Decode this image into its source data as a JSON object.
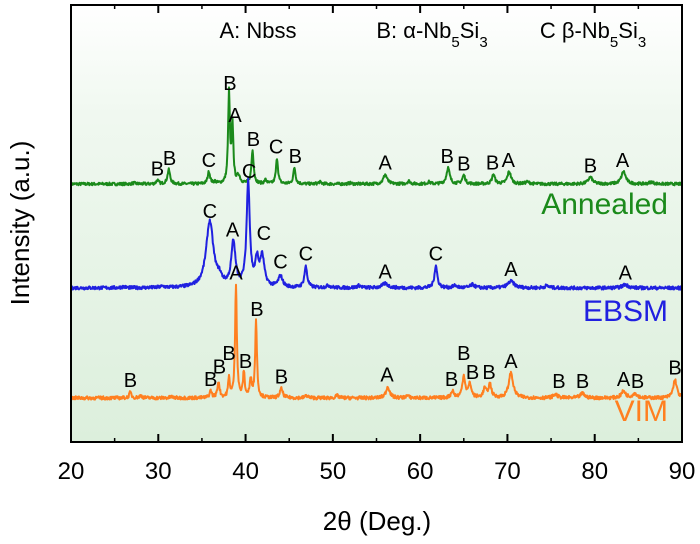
{
  "chart_data": {
    "type": "line",
    "title": "",
    "xlabel": "2θ (Deg.)",
    "ylabel": "Intensity (a.u.)",
    "xlim": [
      20,
      90
    ],
    "x_ticks": [
      "20",
      "30",
      "40",
      "50",
      "60",
      "70",
      "80",
      "90"
    ],
    "y_ticks_labeled": false,
    "grid": false,
    "legend_position": "top-right",
    "legend": [
      {
        "key": "A",
        "text": "A: Nbss"
      },
      {
        "key": "B",
        "text": "B: α-Nb5Si3",
        "html": "B: α-Nb<tspan baseline-shift='sub' font-size='15'>5</tspan>Si<tspan baseline-shift='sub' font-size='15'>3</tspan>"
      },
      {
        "key": "C",
        "text": "C β-Nb5Si3",
        "html": "C β-Nb<tspan baseline-shift='sub' font-size='15'>5</tspan>Si<tspan baseline-shift='sub' font-size='15'>3</tspan>"
      }
    ],
    "series": [
      {
        "name": "Annealed",
        "color": "#1b8a1b",
        "baseline": 0.23,
        "peaks": [
          [
            27.2,
            0.01,
            0.2
          ],
          [
            29.9,
            0.04,
            0.15
          ],
          [
            31.2,
            0.15,
            0.18
          ],
          [
            35.8,
            0.13,
            0.16
          ],
          [
            36.5,
            0.02,
            0.15
          ],
          [
            38.1,
            0.95,
            0.12
          ],
          [
            38.5,
            0.6,
            0.12
          ],
          [
            39.2,
            0.08,
            0.2
          ],
          [
            40.8,
            0.35,
            0.15
          ],
          [
            42.3,
            0.04,
            0.15
          ],
          [
            43.6,
            0.27,
            0.14
          ],
          [
            45.6,
            0.17,
            0.15
          ],
          [
            48.5,
            0.02,
            0.2
          ],
          [
            52.0,
            0.01,
            0.2
          ],
          [
            56.0,
            0.1,
            0.25
          ],
          [
            58.7,
            0.03,
            0.2
          ],
          [
            61.0,
            0.02,
            0.2
          ],
          [
            63.2,
            0.17,
            0.22
          ],
          [
            65.0,
            0.09,
            0.2
          ],
          [
            68.4,
            0.1,
            0.2
          ],
          [
            70.2,
            0.13,
            0.25
          ],
          [
            72.3,
            0.02,
            0.3
          ],
          [
            79.5,
            0.07,
            0.3
          ],
          [
            83.3,
            0.13,
            0.3
          ],
          [
            86.5,
            0.02,
            0.3
          ]
        ],
        "annotations": [
          [
            "B",
            29.9,
            0.07
          ],
          [
            "B",
            31.3,
            0.18
          ],
          [
            "C",
            35.8,
            0.16
          ],
          [
            "B",
            38.2,
            0.97
          ],
          [
            "A",
            38.8,
            0.63
          ],
          [
            "B",
            40.9,
            0.38
          ],
          [
            "C",
            43.5,
            0.3
          ],
          [
            "B",
            45.7,
            0.2
          ],
          [
            "A",
            56.0,
            0.13
          ],
          [
            "B",
            63.1,
            0.2
          ],
          [
            "B",
            65.0,
            0.12
          ],
          [
            "B",
            68.3,
            0.13
          ],
          [
            "A",
            70.1,
            0.16
          ],
          [
            "B",
            79.5,
            0.1
          ],
          [
            "A",
            83.2,
            0.16
          ]
        ]
      },
      {
        "name": "EBSM",
        "color": "#2020e0",
        "baseline": 0.22,
        "peaks": [
          [
            26.0,
            0.01,
            0.3
          ],
          [
            30.5,
            0.01,
            0.3
          ],
          [
            35.9,
            0.6,
            0.5
          ],
          [
            37.0,
            0.06,
            0.3
          ],
          [
            38.6,
            0.4,
            0.28
          ],
          [
            40.3,
            0.95,
            0.22
          ],
          [
            41.3,
            0.22,
            0.22
          ],
          [
            41.9,
            0.27,
            0.3
          ],
          [
            44.0,
            0.1,
            0.3
          ],
          [
            46.9,
            0.19,
            0.2
          ],
          [
            49.5,
            0.02,
            0.3
          ],
          [
            53.0,
            0.02,
            0.3
          ],
          [
            56.0,
            0.04,
            0.4
          ],
          [
            61.8,
            0.2,
            0.2
          ],
          [
            64.0,
            0.02,
            0.3
          ],
          [
            66.0,
            0.03,
            0.3
          ],
          [
            70.4,
            0.06,
            0.45
          ],
          [
            74.5,
            0.02,
            0.3
          ],
          [
            83.5,
            0.03,
            0.4
          ]
        ],
        "annotations": [
          [
            "C",
            35.9,
            0.62
          ],
          [
            "A",
            38.5,
            0.45
          ],
          [
            "C",
            40.4,
            0.98
          ],
          [
            "C",
            42.1,
            0.42
          ],
          [
            "C",
            44.0,
            0.16
          ],
          [
            "C",
            46.9,
            0.23
          ],
          [
            "A",
            56.0,
            0.07
          ],
          [
            "C",
            61.8,
            0.23
          ],
          [
            "A",
            70.4,
            0.09
          ],
          [
            "A",
            83.5,
            0.06
          ]
        ]
      },
      {
        "name": "VIM",
        "color": "#ff7f20",
        "baseline": 0.24,
        "peaks": [
          [
            26.8,
            0.05,
            0.15
          ],
          [
            28.0,
            0.02,
            0.2
          ],
          [
            31.5,
            0.01,
            0.2
          ],
          [
            36.0,
            0.06,
            0.15
          ],
          [
            36.9,
            0.14,
            0.15
          ],
          [
            38.1,
            0.17,
            0.12
          ],
          [
            38.9,
            1.0,
            0.12
          ],
          [
            39.8,
            0.22,
            0.12
          ],
          [
            40.6,
            0.15,
            0.15
          ],
          [
            41.2,
            0.68,
            0.12
          ],
          [
            44.1,
            0.08,
            0.2
          ],
          [
            47.0,
            0.02,
            0.2
          ],
          [
            50.5,
            0.02,
            0.2
          ],
          [
            56.3,
            0.1,
            0.25
          ],
          [
            58.5,
            0.02,
            0.2
          ],
          [
            63.7,
            0.06,
            0.2
          ],
          [
            65.0,
            0.19,
            0.2
          ],
          [
            65.7,
            0.12,
            0.2
          ],
          [
            67.4,
            0.08,
            0.2
          ],
          [
            68.0,
            0.12,
            0.2
          ],
          [
            70.4,
            0.22,
            0.3
          ],
          [
            75.5,
            0.03,
            0.3
          ],
          [
            78.6,
            0.04,
            0.3
          ],
          [
            83.3,
            0.06,
            0.3
          ],
          [
            84.6,
            0.04,
            0.3
          ],
          [
            89.2,
            0.16,
            0.25
          ]
        ],
        "annotations": [
          [
            "B",
            26.8,
            0.08
          ],
          [
            "B",
            36.0,
            0.09
          ],
          [
            "B",
            37.0,
            0.2
          ],
          [
            "B",
            38.1,
            0.32
          ],
          [
            "A",
            38.9,
            1.03
          ],
          [
            "B",
            40.0,
            0.25
          ],
          [
            "B",
            41.3,
            0.71
          ],
          [
            "B",
            44.1,
            0.11
          ],
          [
            "A",
            56.2,
            0.13
          ],
          [
            "B",
            63.6,
            0.09
          ],
          [
            "B",
            65.0,
            0.32
          ],
          [
            "B",
            66.0,
            0.15
          ],
          [
            "B",
            67.9,
            0.15
          ],
          [
            "A",
            70.4,
            0.25
          ],
          [
            "B",
            75.9,
            0.07
          ],
          [
            "B",
            78.6,
            0.07
          ],
          [
            "A",
            83.3,
            0.09
          ],
          [
            "B",
            84.9,
            0.07
          ],
          [
            "B",
            89.2,
            0.19
          ]
        ]
      }
    ]
  }
}
